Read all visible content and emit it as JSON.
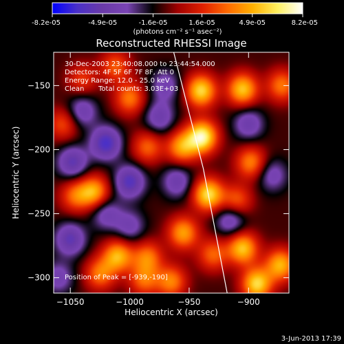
{
  "colorbar": {
    "tick_labels": [
      "-8.2e-05",
      "-4.9e-05",
      "-1.6e-05",
      "1.6e-05",
      "4.9e-05",
      "8.2e-05"
    ],
    "tick_values": [
      -8.2e-05,
      -4.9e-05,
      -1.6e-05,
      1.6e-05,
      4.9e-05,
      8.2e-05
    ],
    "range": [
      -8.2e-05,
      8.2e-05
    ],
    "unit_label": "(photons cm⁻² s⁻¹ asec⁻²)"
  },
  "annotations": {
    "time_range": "30-Dec-2003 23:40:08.000 to 23:44:54.000",
    "detectors": "Detectors: 4F 5F 6F 7F 8F, Att 0",
    "energy_range": "Energy Range: 12.0 - 25.0 keV",
    "clean": "Clean",
    "total_counts": "Total counts: 3.03E+03",
    "peak_position": "Position of Peak = [-939,-190]"
  },
  "footer": {
    "timestamp": "3-Jun-2013 17:39"
  },
  "chart_data": {
    "type": "heatmap",
    "title": "Reconstructed RHESSI Image",
    "xlabel": "Heliocentric X (arcsec)",
    "ylabel": "Heliocentric Y (arcsec)",
    "xlim": [
      -1064,
      -866
    ],
    "ylim": [
      -312,
      -124
    ],
    "x_ticks": [
      -1050,
      -1000,
      -950,
      -900
    ],
    "x_tick_labels": [
      "−1050",
      "−1000",
      "−950",
      "−900"
    ],
    "y_ticks": [
      -150,
      -200,
      -250,
      -300
    ],
    "y_tick_labels": [
      "−150",
      "−200",
      "−250",
      "−300"
    ],
    "colormap": [
      "#0000ff",
      "#4a30c8",
      "#6a3aa8",
      "#7a44b4",
      "#000000",
      "#a00000",
      "#e02000",
      "#ff6a00",
      "#ffb000",
      "#fff060",
      "#ffffff"
    ],
    "limb": [
      [
        -963,
        -124
      ],
      [
        -938,
        -215
      ],
      [
        -918,
        -312
      ]
    ],
    "peak": [
      -939,
      -190
    ],
    "sources": [
      {
        "x": -939,
        "y": -190,
        "amp": 8.2e-05
      },
      {
        "x": -940,
        "y": -154,
        "amp": 7e-05
      },
      {
        "x": -905,
        "y": -153,
        "amp": 6.5e-05
      },
      {
        "x": -872,
        "y": -150,
        "amp": 4.5e-05
      },
      {
        "x": -934,
        "y": -235,
        "amp": 7.2e-05
      },
      {
        "x": -956,
        "y": -198,
        "amp": 5.5e-05
      },
      {
        "x": -898,
        "y": -210,
        "amp": 4.8e-05
      },
      {
        "x": -910,
        "y": -240,
        "amp": 4e-05
      },
      {
        "x": -1030,
        "y": -233,
        "amp": 5.8e-05
      },
      {
        "x": -1046,
        "y": -236,
        "amp": 4e-05
      },
      {
        "x": -1010,
        "y": -283,
        "amp": 6e-05
      },
      {
        "x": -1025,
        "y": -297,
        "amp": 4.5e-05
      },
      {
        "x": -1000,
        "y": -160,
        "amp": 4.5e-05
      },
      {
        "x": -985,
        "y": -198,
        "amp": 4e-05
      },
      {
        "x": -985,
        "y": -284,
        "amp": 4.5e-05
      },
      {
        "x": -988,
        "y": -302,
        "amp": 4e-05
      },
      {
        "x": -955,
        "y": -265,
        "amp": 5.5e-05
      },
      {
        "x": -965,
        "y": -303,
        "amp": 4.8e-05
      },
      {
        "x": -905,
        "y": -277,
        "amp": 6.5e-05
      },
      {
        "x": -893,
        "y": -305,
        "amp": 7e-05
      },
      {
        "x": -873,
        "y": -290,
        "amp": 6e-05
      },
      {
        "x": -930,
        "y": -282,
        "amp": 4e-05
      },
      {
        "x": -1056,
        "y": -180,
        "amp": 3.5e-05
      },
      {
        "x": -1012,
        "y": -135,
        "amp": 3.8e-05
      },
      {
        "x": -1040,
        "y": -145,
        "amp": 3e-05
      },
      {
        "x": -1020,
        "y": -195,
        "amp": -5.5e-05
      },
      {
        "x": -1048,
        "y": -210,
        "amp": -4.5e-05
      },
      {
        "x": -1000,
        "y": -225,
        "amp": -5e-05
      },
      {
        "x": -1050,
        "y": -270,
        "amp": -4.5e-05
      },
      {
        "x": -1040,
        "y": -170,
        "amp": -3.5e-05
      },
      {
        "x": -975,
        "y": -175,
        "amp": -3.5e-05
      },
      {
        "x": -915,
        "y": -255,
        "amp": -3.8e-05
      },
      {
        "x": -960,
        "y": -225,
        "amp": -3.5e-05
      },
      {
        "x": -900,
        "y": -180,
        "amp": -3.5e-05
      },
      {
        "x": -970,
        "y": -150,
        "amp": -3e-05
      },
      {
        "x": -1020,
        "y": -250,
        "amp": -3.2e-05
      },
      {
        "x": -1060,
        "y": -300,
        "amp": -3e-05
      },
      {
        "x": -1000,
        "y": -260,
        "amp": -3e-05
      },
      {
        "x": -880,
        "y": -220,
        "amp": -3e-05
      }
    ]
  }
}
